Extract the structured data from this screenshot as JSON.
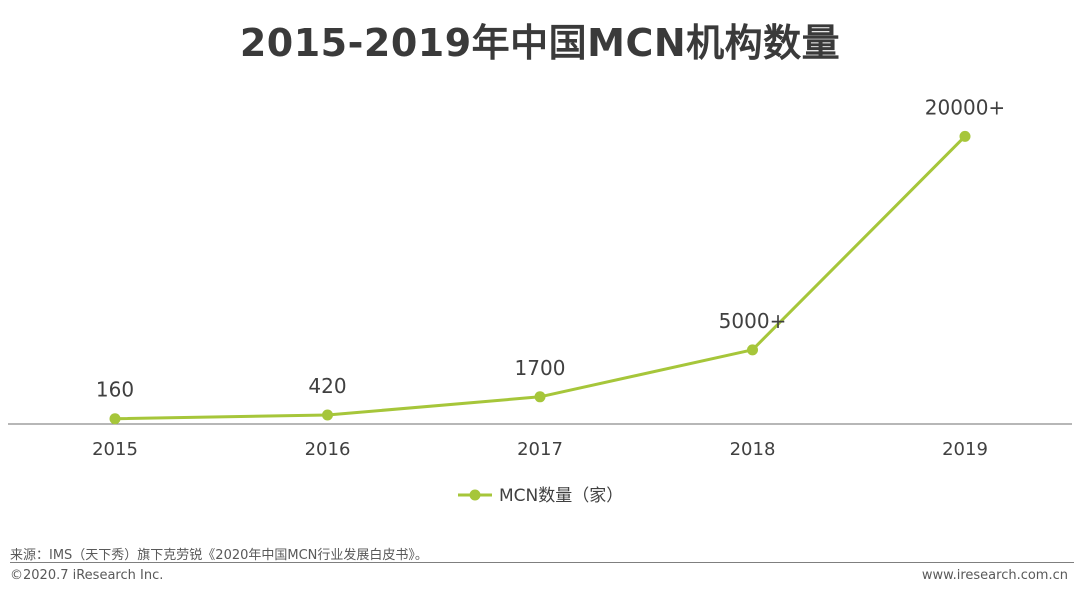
{
  "title": "2015-2019年中国MCN机构数量",
  "chart_data": {
    "type": "line",
    "title": "2015-2019年中国MCN机构数量",
    "categories": [
      "2015",
      "2016",
      "2017",
      "2018",
      "2019"
    ],
    "series": [
      {
        "name": "MCN数量（家）",
        "values": [
          160,
          420,
          1700,
          5000,
          20000
        ],
        "labels": [
          "160",
          "420",
          "1700",
          "5000+",
          "20000+"
        ]
      }
    ],
    "ylim": [
      0,
      21500
    ],
    "grid": false,
    "legend": "bottom",
    "color": "#a6c63a"
  },
  "source": "来源：IMS（天下秀）旗下克劳锐《2020年中国MCN行业发展白皮书》。",
  "copyright": "©2020.7 iResearch Inc.",
  "site": "www.iresearch.com.cn"
}
